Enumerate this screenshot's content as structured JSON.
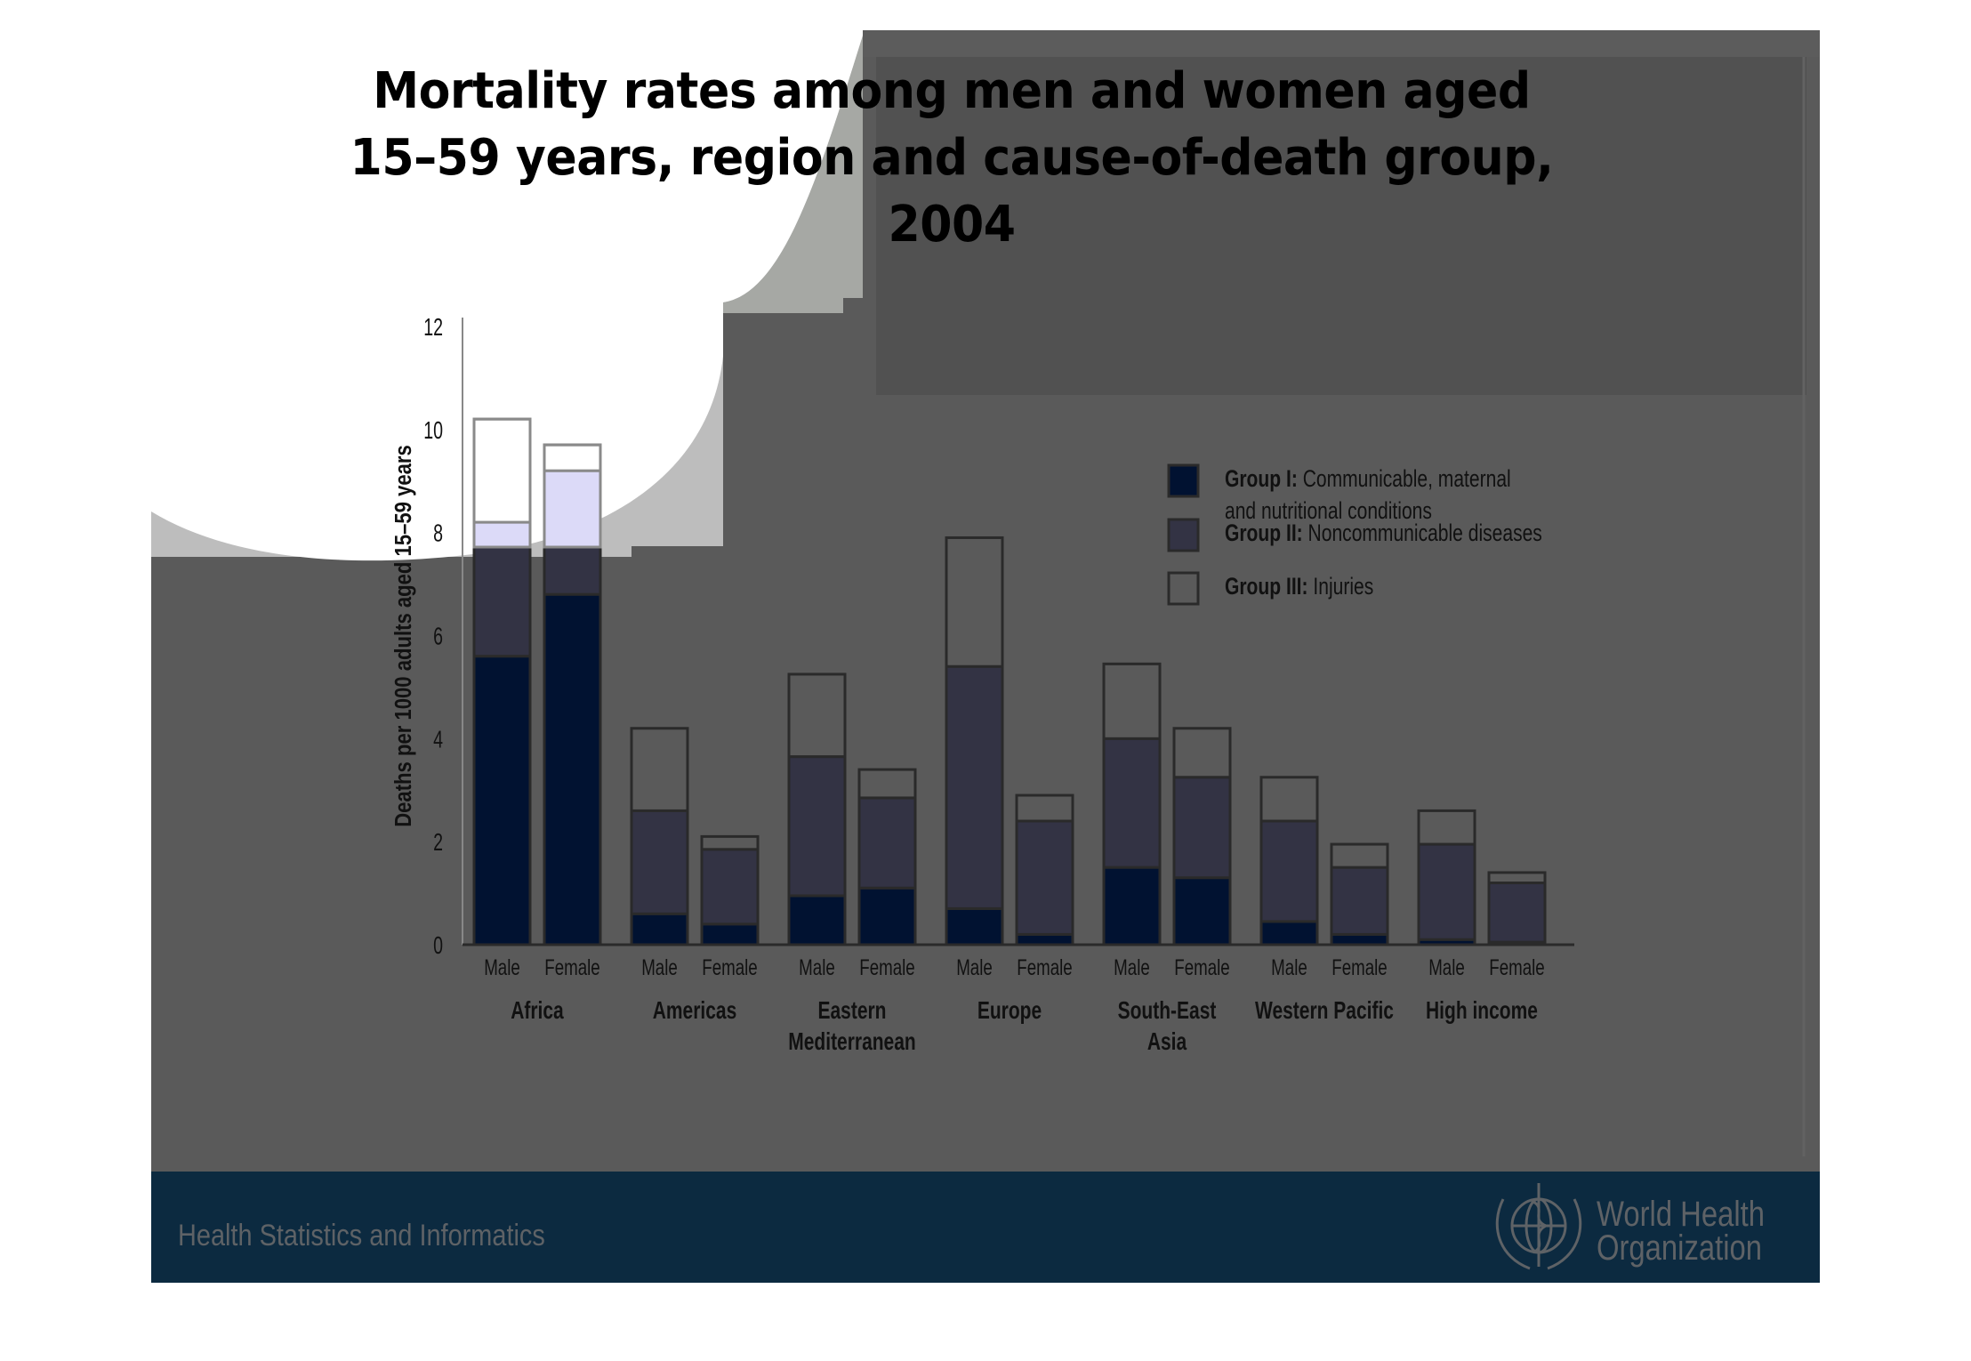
{
  "slide": {
    "title_lines": [
      "Mortality rates among men and women aged",
      "15–59 years, region and cause-of-death group,",
      "2004"
    ],
    "footer": {
      "left_text": "Health Statistics and Informatics",
      "org_line1": "World Health",
      "org_line2": "Organization",
      "logo_icon": "who-emblem-icon"
    },
    "colors": {
      "panel": "#5a5a5a",
      "footer": "#0c2a40",
      "group1": "#011231",
      "group2": "#333344",
      "group3": "#5a5a5a",
      "outline": "#2a2a2a"
    }
  },
  "chart_data": {
    "type": "bar",
    "stacked": true,
    "title": "Mortality rates among men and women aged 15–59 years, region and cause-of-death group, 2004",
    "ylabel": "Deaths per 1000 adults aged 15–59 years",
    "xlabel": "",
    "ylim": [
      0,
      12
    ],
    "yticks": [
      0,
      2,
      4,
      6,
      8,
      10,
      12
    ],
    "grid": false,
    "legend_position": "top-right",
    "regions": [
      {
        "name": "Africa",
        "label_lines": [
          "Africa"
        ]
      },
      {
        "name": "Americas",
        "label_lines": [
          "Americas"
        ]
      },
      {
        "name": "Eastern Mediterranean",
        "label_lines": [
          "Eastern",
          "Mediterranean"
        ]
      },
      {
        "name": "Europe",
        "label_lines": [
          "Europe"
        ]
      },
      {
        "name": "South-East Asia",
        "label_lines": [
          "South-East",
          "Asia"
        ]
      },
      {
        "name": "Western Pacific",
        "label_lines": [
          "Western Pacific"
        ]
      },
      {
        "name": "High income",
        "label_lines": [
          "High income"
        ]
      }
    ],
    "sexes": [
      "Male",
      "Female"
    ],
    "categories": [
      "Africa Male",
      "Africa Female",
      "Americas Male",
      "Americas Female",
      "Eastern Mediterranean Male",
      "Eastern Mediterranean Female",
      "Europe Male",
      "Europe Female",
      "South-East Asia Male",
      "South-East Asia Female",
      "Western Pacific Male",
      "Western Pacific Female",
      "High income Male",
      "High income Female"
    ],
    "series": [
      {
        "name": "Group I",
        "legend_bold": "Group I:",
        "legend_text_lines": [
          "Communicable, maternal",
          "and nutritional conditions"
        ],
        "values": [
          5.6,
          6.8,
          0.6,
          0.4,
          0.95,
          1.1,
          0.7,
          0.2,
          1.5,
          1.3,
          0.45,
          0.2,
          0.1,
          0.05
        ]
      },
      {
        "name": "Group II",
        "legend_bold": "Group II:",
        "legend_text_lines": [
          "Noncommunicable diseases"
        ],
        "values": [
          2.6,
          2.4,
          2.0,
          1.45,
          2.7,
          1.75,
          4.7,
          2.2,
          2.5,
          1.95,
          1.95,
          1.3,
          1.85,
          1.15
        ]
      },
      {
        "name": "Group III",
        "legend_bold": "Group III:",
        "legend_text_lines": [
          "Injuries"
        ],
        "values": [
          2.0,
          0.5,
          1.6,
          0.25,
          1.6,
          0.55,
          2.5,
          0.5,
          1.45,
          0.95,
          0.85,
          0.45,
          0.65,
          0.2
        ]
      }
    ]
  }
}
